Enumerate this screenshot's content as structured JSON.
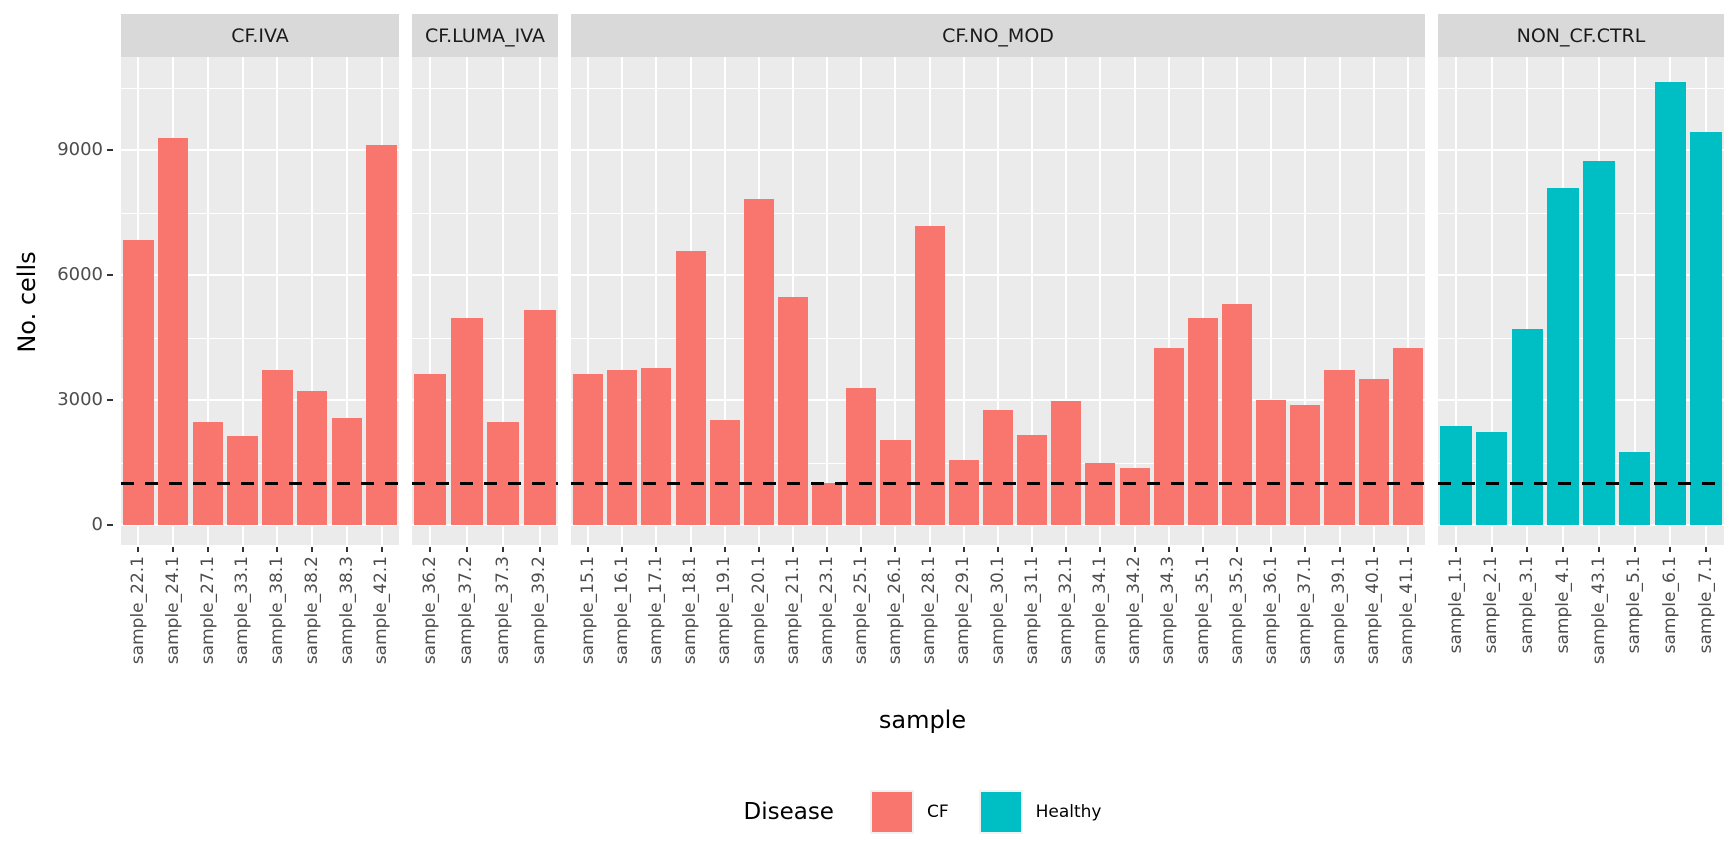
{
  "chart_data": {
    "type": "bar",
    "title": "",
    "xlabel": "sample",
    "ylabel": "No. cells",
    "ylim": [
      0,
      11232
    ],
    "yticks": [
      0,
      3000,
      6000,
      9000
    ],
    "ytick_labels": [
      "0",
      "3000",
      "6000",
      "9000"
    ],
    "minor_gridlines": [
      1500,
      4500,
      7500,
      10500
    ],
    "grid": "on",
    "hline": {
      "y": 1000,
      "style": "dashed",
      "color": "#000000"
    },
    "legend_position": "bottom",
    "legend": {
      "title": "Disease",
      "entries": [
        {
          "label": "CF",
          "color": "#F8766D"
        },
        {
          "label": "Healthy",
          "color": "#00BFC4"
        }
      ]
    },
    "colors": {
      "CF": "#F8766D",
      "Healthy": "#00BFC4",
      "panel_background": "#EBEBEB",
      "strip_background": "#D9D9D9",
      "gridline": "#FFFFFF",
      "axis_text": "#4D4D4D"
    },
    "facets": [
      {
        "label": "CF.IVA",
        "group": "CF",
        "categories": [
          "sample_22.1",
          "sample_24.1",
          "sample_27.1",
          "sample_33.1",
          "sample_38.1",
          "sample_38.2",
          "sample_38.3",
          "sample_42.1"
        ],
        "values": [
          6840,
          9280,
          2470,
          2140,
          3720,
          3220,
          2580,
          9120
        ]
      },
      {
        "label": "CF.LUMA_IVA",
        "group": "CF",
        "categories": [
          "sample_36.2",
          "sample_37.2",
          "sample_37.3",
          "sample_39.2"
        ],
        "values": [
          3620,
          4960,
          2480,
          5160
        ]
      },
      {
        "label": "CF.NO_MOD",
        "group": "CF",
        "categories": [
          "sample_15.1",
          "sample_16.1",
          "sample_17.1",
          "sample_18.1",
          "sample_19.1",
          "sample_20.1",
          "sample_21.1",
          "sample_23.1",
          "sample_25.1",
          "sample_26.1",
          "sample_28.1",
          "sample_29.1",
          "sample_30.1",
          "sample_31.1",
          "sample_32.1",
          "sample_34.1",
          "sample_34.2",
          "sample_34.3",
          "sample_35.1",
          "sample_35.2",
          "sample_36.1",
          "sample_37.1",
          "sample_39.1",
          "sample_40.1",
          "sample_41.1"
        ],
        "values": [
          3620,
          3720,
          3760,
          6580,
          2520,
          7820,
          5480,
          1020,
          3280,
          2040,
          7170,
          1560,
          2770,
          2160,
          2980,
          1500,
          1360,
          4240,
          4980,
          5310,
          3000,
          2880,
          3720,
          3500,
          4240
        ]
      },
      {
        "label": "NON_CF.CTRL",
        "group": "Healthy",
        "categories": [
          "sample_1.1",
          "sample_2.1",
          "sample_3.1",
          "sample_4.1",
          "sample_43.1",
          "sample_5.1",
          "sample_6.1",
          "sample_7.1"
        ],
        "values": [
          2380,
          2240,
          4700,
          8080,
          8740,
          1760,
          10640,
          9440
        ]
      }
    ]
  }
}
